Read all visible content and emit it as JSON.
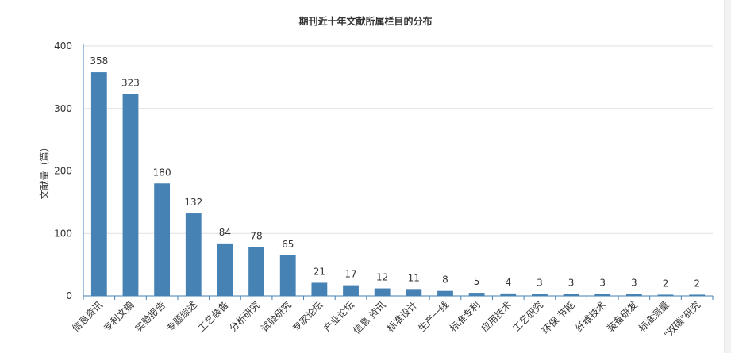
{
  "chart_data": {
    "type": "bar",
    "title": "期刊近十年文献所属栏目的分布",
    "xlabel": "",
    "ylabel": "文献量（篇）",
    "ylim": [
      0,
      400
    ],
    "yticks": [
      0,
      100,
      200,
      300,
      400
    ],
    "grid": true,
    "bar_color": "#4682b4",
    "categories": [
      "信息资讯",
      "专利文摘",
      "实验报告",
      "专题综述",
      "工艺装备",
      "分析研究",
      "试验研究",
      "专家论坛",
      "产业论坛",
      "信息 资讯",
      "标准设计",
      "生产一线",
      "标准专利",
      "应用技术",
      "工艺研究",
      "环保 节能",
      "纤维技术",
      "装备研发",
      "标准测量",
      "\"双碳\"研究"
    ],
    "values": [
      358,
      323,
      180,
      132,
      84,
      78,
      65,
      21,
      17,
      12,
      11,
      8,
      5,
      4,
      3,
      3,
      3,
      3,
      2,
      2
    ]
  }
}
